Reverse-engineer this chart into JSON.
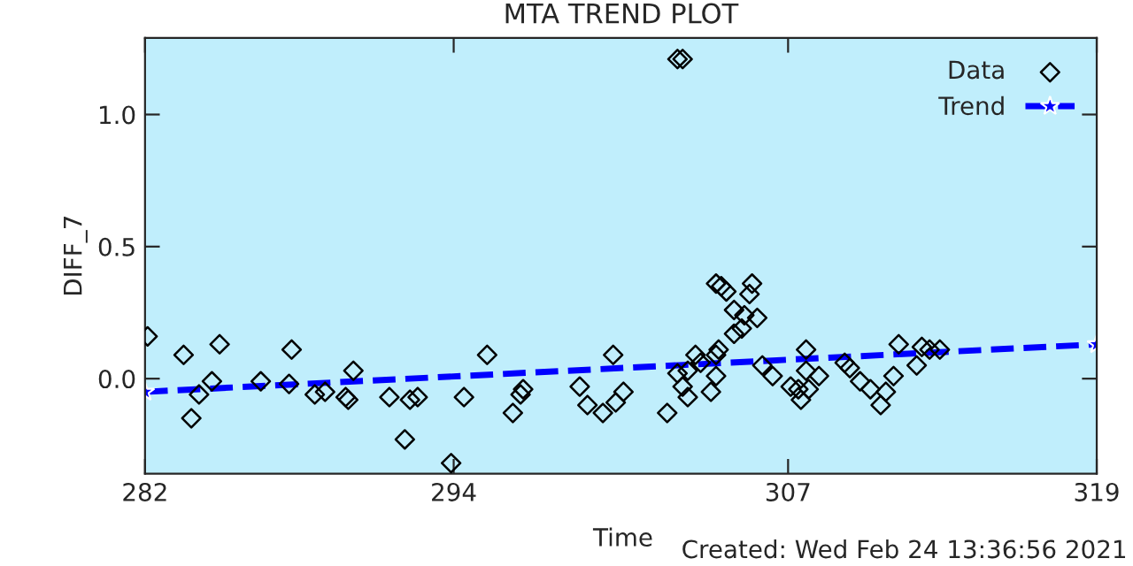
{
  "chart_data": {
    "type": "scatter",
    "title": "MTA TREND PLOT",
    "xlabel": "Time",
    "ylabel": "DIFF_7",
    "xlim": [
      282,
      319
    ],
    "xticks": [
      282,
      294,
      307,
      319
    ],
    "ylim": [
      -0.36,
      1.29
    ],
    "yticks": [
      {
        "value": 0,
        "label": "0.0"
      },
      {
        "value": 0.5,
        "label": "0.5"
      },
      {
        "value": 1,
        "label": "1.0"
      }
    ],
    "grid": false,
    "legend": "top right",
    "annotations": [
      "Created: Wed Feb 24 13:36:56 2021"
    ],
    "series": [
      {
        "name": "Data",
        "marker": "diamond",
        "color": "#000000",
        "x": [
          282.1,
          283.5,
          283.8,
          284.1,
          284.6,
          284.9,
          286.5,
          287.6,
          287.7,
          288.6,
          289.0,
          289.8,
          289.9,
          290.1,
          291.5,
          292.1,
          292.3,
          292.6,
          293.9,
          294.4,
          295.3,
          296.3,
          296.6,
          296.7,
          298.9,
          299.2,
          299.8,
          300.2,
          300.3,
          300.6,
          302.3,
          302.7,
          302.9,
          303.1,
          302.7,
          302.9,
          303.1,
          303.4,
          303.6,
          304.0,
          304.2,
          304.2,
          304.3,
          304.2,
          304.4,
          304.6,
          304.9,
          305.2,
          304.9,
          305.3,
          305.5,
          305.6,
          305.8,
          306.0,
          306.4,
          307.1,
          307.4,
          307.5,
          307.7,
          307.7,
          307.8,
          308.2,
          309.2,
          309.4,
          309.8,
          310.2,
          310.6,
          310.8,
          311.1,
          311.3,
          312.0,
          312.2,
          312.5,
          312.9
        ],
        "values": [
          0.16,
          0.09,
          -0.15,
          -0.06,
          -0.01,
          0.13,
          -0.01,
          -0.02,
          0.11,
          -0.06,
          -0.05,
          -0.07,
          -0.08,
          0.03,
          -0.07,
          -0.23,
          -0.08,
          -0.07,
          -0.32,
          -0.07,
          0.09,
          -0.13,
          -0.06,
          -0.04,
          -0.03,
          -0.1,
          -0.13,
          0.09,
          -0.09,
          -0.05,
          -0.13,
          0.02,
          -0.03,
          -0.07,
          1.21,
          1.21,
          0.03,
          0.09,
          0.06,
          -0.05,
          0.01,
          0.09,
          0.11,
          0.36,
          0.35,
          0.33,
          0.26,
          0.19,
          0.17,
          0.24,
          0.32,
          0.36,
          0.23,
          0.05,
          0.01,
          -0.03,
          -0.04,
          -0.08,
          0.11,
          0.03,
          -0.04,
          0.01,
          0.06,
          0.04,
          -0.01,
          -0.04,
          -0.1,
          -0.05,
          0.01,
          0.13,
          0.05,
          0.12,
          0.11,
          0.11
        ]
      },
      {
        "name": "Trend",
        "type": "line",
        "marker": "star",
        "line_style": "dashed",
        "color": "#0000ff",
        "x": [
          282,
          319
        ],
        "values": [
          -0.05,
          0.13
        ]
      }
    ]
  }
}
